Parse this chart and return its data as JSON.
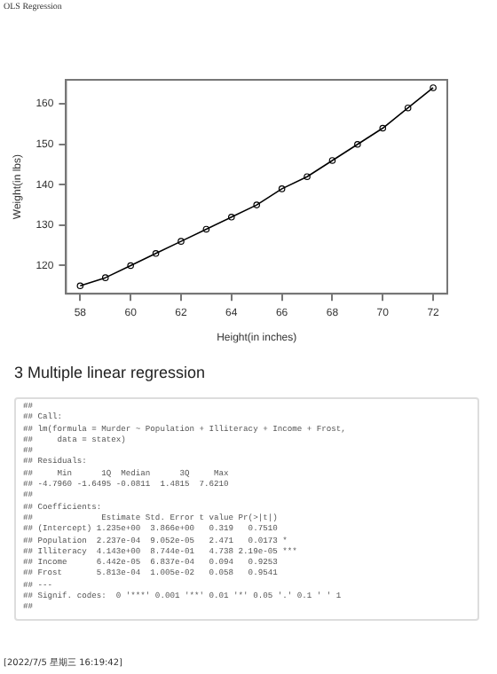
{
  "chart_data": {
    "type": "scatter",
    "xlabel": "Height(in inches)",
    "ylabel": "Weight(in lbs)",
    "x": [
      58,
      59,
      60,
      61,
      62,
      63,
      64,
      65,
      66,
      67,
      68,
      69,
      70,
      71,
      72
    ],
    "series": [
      {
        "color": "#000000",
        "marker": "circle",
        "values": [
          115,
          117,
          120,
          123,
          126,
          129,
          132,
          135,
          139,
          142,
          146,
          150,
          154,
          159,
          164
        ]
      },
      {
        "type": "line",
        "color": "#000000",
        "marker": "none",
        "values": [
          115,
          117,
          120,
          123,
          126,
          129,
          132,
          135,
          139,
          142,
          146,
          150,
          154,
          159,
          164
        ]
      }
    ],
    "xlim": [
      57.44,
      72.56
    ],
    "ylim": [
      113.04,
      165.96
    ],
    "xticks": [
      58,
      60,
      62,
      64,
      66,
      68,
      70,
      72
    ],
    "yticks": [
      120,
      130,
      140,
      150,
      160
    ],
    "grid": false,
    "legend": false,
    "annotations": [
      "OLS Regression",
      "3 Multiple linear regression",
      "##",
      "## Call:",
      "## lm(formula = Murder ~ Population + Illiteracy + Income + Frost, ",
      "##     data = statex)",
      "##",
      "## Residuals:",
      "##     Min      1Q  Median      3Q     Max ",
      "## -4.7960 -1.6495 -0.0811  1.4815  7.6210 ",
      "##",
      "## Coefficients:",
      "##              Estimate Std. Error t value Pr(>|t|)    ",
      "## (Intercept) 1.235e+00  3.866e+00   0.319   0.7510    ",
      "## Population  2.237e-04  9.052e-05   2.471   0.0173 *  ",
      "## Illiteracy  4.143e+00  8.744e-01   4.738 2.19e-05 ***",
      "## Income      6.442e-05  6.837e-04   0.094   0.9253    ",
      "## Frost       5.813e-04  1.005e-02   0.058   0.9541    ",
      "## ---",
      "## Signif. codes:  0 '***' 0.001 '**' 0.01 '*' 0.05 '.' 0.1 ' ' 1",
      "##",
      "[2022/7/5 星期三 16:19:42]"
    ]
  }
}
